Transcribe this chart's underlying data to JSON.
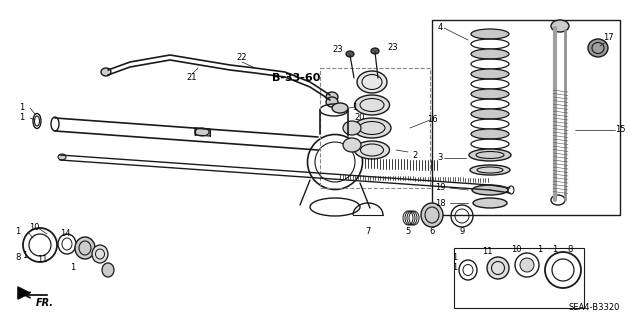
{
  "background_color": "#ffffff",
  "line_color": "#1a1a1a",
  "figure_width": 6.4,
  "figure_height": 3.19,
  "dpi": 100,
  "diagram_code": "SEA4-B3320",
  "ref_code": "B-33-60"
}
